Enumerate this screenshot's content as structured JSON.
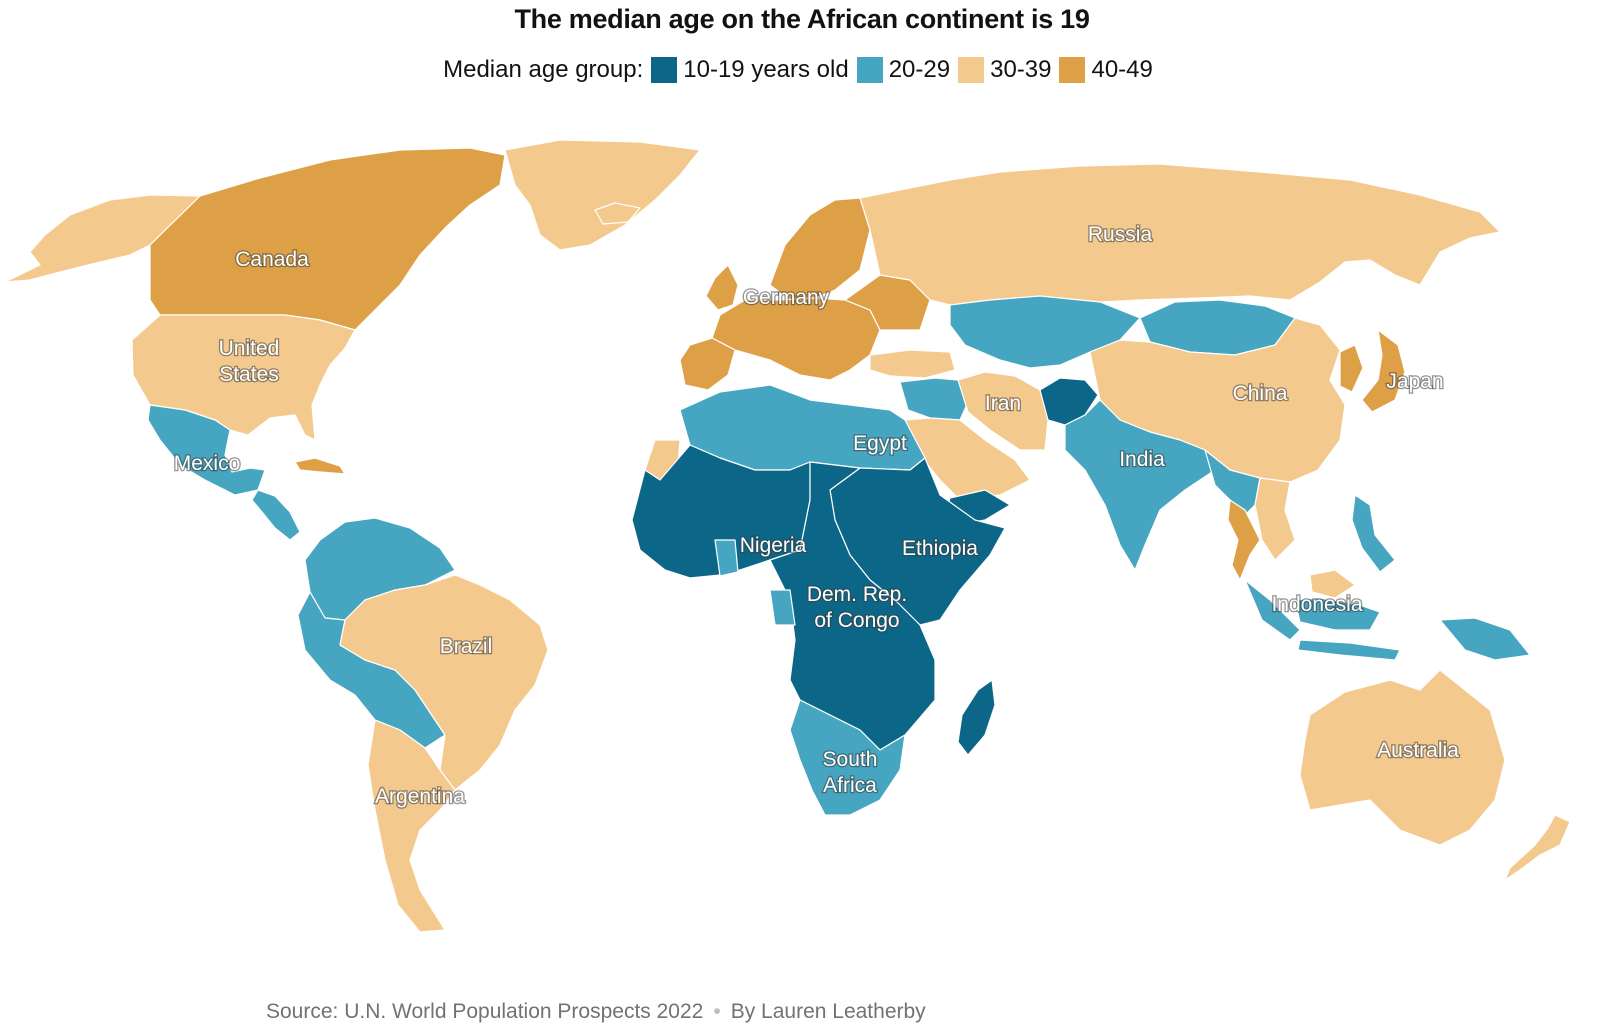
{
  "title": "The median age on the African continent is 19",
  "legend": {
    "lead": "Median age group:",
    "items": [
      {
        "label": "10-19 years old",
        "color": "#0b6687"
      },
      {
        "label": "20-29",
        "color": "#46a6c1"
      },
      {
        "label": "30-39",
        "color": "#f3c98d"
      },
      {
        "label": "40-49",
        "color": "#dea047"
      }
    ]
  },
  "countries": [
    {
      "id": "greenland",
      "group": "30-39"
    },
    {
      "id": "alaska",
      "group": "30-39"
    },
    {
      "id": "canada",
      "group": "40-49",
      "label": "Canada"
    },
    {
      "id": "united-states",
      "group": "30-39",
      "label": "United States"
    },
    {
      "id": "mexico",
      "group": "20-29",
      "label": "Mexico"
    },
    {
      "id": "central-america",
      "group": "20-29"
    },
    {
      "id": "cuba",
      "group": "40-49"
    },
    {
      "id": "colombia-venezuela",
      "group": "20-29"
    },
    {
      "id": "peru-bolivia",
      "group": "20-29"
    },
    {
      "id": "brazil",
      "group": "30-39",
      "label": "Brazil"
    },
    {
      "id": "argentina",
      "group": "30-39",
      "label": "Argentina"
    },
    {
      "id": "iceland",
      "group": "30-39"
    },
    {
      "id": "scandinavia",
      "group": "40-49"
    },
    {
      "id": "western-europe",
      "group": "40-49",
      "label": "Germany"
    },
    {
      "id": "uk",
      "group": "40-49"
    },
    {
      "id": "iberia",
      "group": "40-49"
    },
    {
      "id": "eastern-europe",
      "group": "40-49"
    },
    {
      "id": "russia",
      "group": "30-39",
      "label": "Russia"
    },
    {
      "id": "turkey",
      "group": "30-39"
    },
    {
      "id": "north-africa",
      "group": "20-29",
      "label": "Egypt"
    },
    {
      "id": "western-sahara",
      "group": "30-39"
    },
    {
      "id": "west-africa",
      "group": "10-19",
      "label": "Nigeria"
    },
    {
      "id": "ghana",
      "group": "20-29"
    },
    {
      "id": "east-africa",
      "group": "10-19",
      "label": "Ethiopia"
    },
    {
      "id": "central-africa",
      "group": "10-19",
      "label": "Dem. Rep. of Congo"
    },
    {
      "id": "gabon",
      "group": "20-29"
    },
    {
      "id": "southern-africa",
      "group": "20-29",
      "label": "South Africa"
    },
    {
      "id": "madagascar",
      "group": "10-19"
    },
    {
      "id": "yemen",
      "group": "10-19"
    },
    {
      "id": "arabia",
      "group": "30-39"
    },
    {
      "id": "middle-east",
      "group": "20-29"
    },
    {
      "id": "iran",
      "group": "30-39",
      "label": "Iran"
    },
    {
      "id": "afghanistan",
      "group": "10-19"
    },
    {
      "id": "central-asia",
      "group": "20-29"
    },
    {
      "id": "mongolia",
      "group": "20-29"
    },
    {
      "id": "south-asia",
      "group": "20-29",
      "label": "India"
    },
    {
      "id": "china",
      "group": "30-39",
      "label": "China"
    },
    {
      "id": "korea",
      "group": "40-49"
    },
    {
      "id": "japan",
      "group": "40-49",
      "label": "Japan"
    },
    {
      "id": "myanmar-laos",
      "group": "20-29"
    },
    {
      "id": "thailand",
      "group": "40-49"
    },
    {
      "id": "vietnam",
      "group": "30-39"
    },
    {
      "id": "philippines",
      "group": "20-29"
    },
    {
      "id": "indonesia",
      "group": "20-29",
      "label": "Indonesia"
    },
    {
      "id": "malaysia",
      "group": "30-39"
    },
    {
      "id": "papua",
      "group": "20-29"
    },
    {
      "id": "australia",
      "group": "30-39",
      "label": "Australia"
    },
    {
      "id": "new-zealand",
      "group": "30-39"
    }
  ],
  "footer": {
    "source": "Source: U.N. World Population Prospects 2022",
    "byline": "By Lauren Leatherby"
  }
}
